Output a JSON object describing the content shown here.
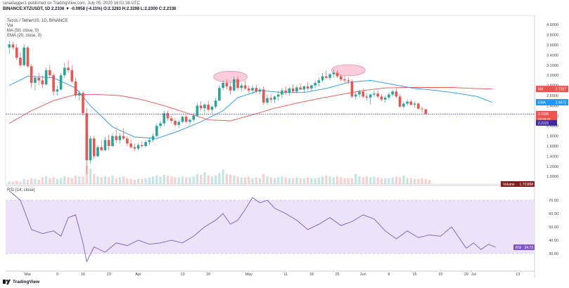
{
  "header": {
    "publisher": "ranadagger1 published on TradingView.com, July 05, 2020 16:01:38 UTC",
    "title": "BINANCE:XTZUSDT, 1D  2.2336 ▼ -0.0958 (-4.11%)  O:2.3283  H:2.3298  L:2.2300  C:2.2336",
    "symbol": "Tezos / TetherUS, 1D, BINANCE",
    "studies": {
      "volume": "Vol",
      "ma": "MA (50, close, 0)",
      "ema": "EMA (20, close, 0)"
    }
  },
  "rsi_panel": {
    "title": "RSI (14, close)"
  },
  "brand": {
    "name": "TradingView"
  },
  "colors": {
    "up": "#26a69a",
    "down": "#ef5350",
    "ema": "#2196f3",
    "ma": "#ef5350",
    "rsi": "#7e57c2",
    "rsi_band": "#ede3f9",
    "price_line": "#3f2a9e",
    "highlight": "#f48fb1"
  },
  "chart_data": [
    {
      "type": "candlestick",
      "title": "Tezos / TetherUS, 1D, BINANCE",
      "y_ticks": [
        1.0,
        1.2,
        1.4,
        1.6,
        1.8,
        2.0,
        2.2,
        2.4,
        2.6,
        2.8,
        3.0,
        3.2,
        3.4,
        3.6,
        3.8,
        4.0
      ],
      "y_tick_labels": [
        "1.0000",
        "1.2000",
        "1.4000",
        "1.6000",
        "1.8000",
        "2.0000",
        "2.2000",
        "2.4000",
        "2.6000",
        "2.8000",
        "3.0000",
        "3.2000",
        "3.4000",
        "3.6000",
        "3.8000",
        "4.0000"
      ],
      "ylim": [
        0.85,
        4.1
      ],
      "x_ticks": [
        {
          "label": "Mar",
          "day": 5
        },
        {
          "label": "9",
          "day": 13
        },
        {
          "label": "16",
          "day": 20
        },
        {
          "label": "23",
          "day": 27
        },
        {
          "label": "Apr",
          "day": 35
        },
        {
          "label": "13",
          "day": 47
        },
        {
          "label": "20",
          "day": 54
        },
        {
          "label": "May",
          "day": 65
        },
        {
          "label": "11",
          "day": 75
        },
        {
          "label": "18",
          "day": 82
        },
        {
          "label": "25",
          "day": 89
        },
        {
          "label": "Jun",
          "day": 96
        },
        {
          "label": "8",
          "day": 103
        },
        {
          "label": "15",
          "day": 110
        },
        {
          "label": "22",
          "day": 117
        },
        {
          "label": "29",
          "day": 124
        },
        {
          "label": "Jul",
          "day": 126
        },
        {
          "label": "13",
          "day": 138
        }
      ],
      "xlim": [
        -1,
        141
      ],
      "candles": [
        [
          3.55,
          3.68,
          3.42,
          3.61
        ],
        [
          3.61,
          3.66,
          3.52,
          3.55
        ],
        [
          3.55,
          3.62,
          3.3,
          3.35
        ],
        [
          3.35,
          3.45,
          3.15,
          3.2
        ],
        [
          3.2,
          3.62,
          3.18,
          3.55
        ],
        [
          3.55,
          3.58,
          3.15,
          3.18
        ],
        [
          3.18,
          3.22,
          2.75,
          2.85
        ],
        [
          2.85,
          3.0,
          2.7,
          2.95
        ],
        [
          2.95,
          3.05,
          2.8,
          2.9
        ],
        [
          2.9,
          3.0,
          2.75,
          2.82
        ],
        [
          2.82,
          3.15,
          2.8,
          3.1
        ],
        [
          3.1,
          3.2,
          2.95,
          3.0
        ],
        [
          3.0,
          3.05,
          2.6,
          2.68
        ],
        [
          2.68,
          2.8,
          2.6,
          2.72
        ],
        [
          2.72,
          3.05,
          2.7,
          3.0
        ],
        [
          3.0,
          3.25,
          2.95,
          3.15
        ],
        [
          3.15,
          3.3,
          3.05,
          3.1
        ],
        [
          3.1,
          3.2,
          2.85,
          2.88
        ],
        [
          2.88,
          2.95,
          2.55,
          2.6
        ],
        [
          2.6,
          2.7,
          2.5,
          2.65
        ],
        [
          2.65,
          2.7,
          2.2,
          2.25
        ],
        [
          2.25,
          2.35,
          1.05,
          1.32
        ],
        [
          1.32,
          1.8,
          1.25,
          1.75
        ],
        [
          1.75,
          1.8,
          1.35,
          1.4
        ],
        [
          1.4,
          1.62,
          1.38,
          1.58
        ],
        [
          1.58,
          1.72,
          1.5,
          1.52
        ],
        [
          1.52,
          1.78,
          1.5,
          1.72
        ],
        [
          1.72,
          1.82,
          1.52,
          1.6
        ],
        [
          1.6,
          1.85,
          1.58,
          1.8
        ],
        [
          1.8,
          1.92,
          1.66,
          1.72
        ],
        [
          1.72,
          1.85,
          1.65,
          1.8
        ],
        [
          1.8,
          1.95,
          1.72,
          1.75
        ],
        [
          1.75,
          1.8,
          1.6,
          1.65
        ],
        [
          1.65,
          1.72,
          1.55,
          1.58
        ],
        [
          1.58,
          1.65,
          1.5,
          1.55
        ],
        [
          1.55,
          1.66,
          1.52,
          1.62
        ],
        [
          1.62,
          1.7,
          1.56,
          1.6
        ],
        [
          1.6,
          1.72,
          1.58,
          1.68
        ],
        [
          1.68,
          1.78,
          1.62,
          1.72
        ],
        [
          1.72,
          1.85,
          1.68,
          1.8
        ],
        [
          1.8,
          2.05,
          1.78,
          2.0
        ],
        [
          2.0,
          2.1,
          1.95,
          2.05
        ],
        [
          2.05,
          2.3,
          2.0,
          2.25
        ],
        [
          2.25,
          2.3,
          2.1,
          2.15
        ],
        [
          2.15,
          2.2,
          2.05,
          2.1
        ],
        [
          2.1,
          2.15,
          1.98,
          2.02
        ],
        [
          2.02,
          2.12,
          1.96,
          2.08
        ],
        [
          2.08,
          2.2,
          2.05,
          2.18
        ],
        [
          2.18,
          2.22,
          2.05,
          2.08
        ],
        [
          2.08,
          2.15,
          2.02,
          2.12
        ],
        [
          2.12,
          2.25,
          2.08,
          2.2
        ],
        [
          2.2,
          2.45,
          2.18,
          2.4
        ],
        [
          2.4,
          2.48,
          2.3,
          2.35
        ],
        [
          2.35,
          2.45,
          2.25,
          2.42
        ],
        [
          2.42,
          2.5,
          2.28,
          2.32
        ],
        [
          2.32,
          2.4,
          2.25,
          2.38
        ],
        [
          2.38,
          2.55,
          2.35,
          2.5
        ],
        [
          2.5,
          2.8,
          2.48,
          2.75
        ],
        [
          2.75,
          2.9,
          2.7,
          2.85
        ],
        [
          2.85,
          2.92,
          2.72,
          2.78
        ],
        [
          2.78,
          2.85,
          2.62,
          2.7
        ],
        [
          2.7,
          2.98,
          2.68,
          2.92
        ],
        [
          2.92,
          2.98,
          2.7,
          2.75
        ],
        [
          2.75,
          2.85,
          2.68,
          2.8
        ],
        [
          2.8,
          2.9,
          2.7,
          2.74
        ],
        [
          2.74,
          2.8,
          2.65,
          2.7
        ],
        [
          2.7,
          2.8,
          2.62,
          2.75
        ],
        [
          2.75,
          2.82,
          2.65,
          2.68
        ],
        [
          2.68,
          2.75,
          2.62,
          2.72
        ],
        [
          2.72,
          2.78,
          2.42,
          2.46
        ],
        [
          2.46,
          2.62,
          2.42,
          2.55
        ],
        [
          2.55,
          2.62,
          2.45,
          2.52
        ],
        [
          2.52,
          2.6,
          2.44,
          2.58
        ],
        [
          2.58,
          2.7,
          2.5,
          2.62
        ],
        [
          2.62,
          2.75,
          2.55,
          2.7
        ],
        [
          2.7,
          2.78,
          2.62,
          2.66
        ],
        [
          2.66,
          2.76,
          2.6,
          2.74
        ],
        [
          2.74,
          2.82,
          2.65,
          2.68
        ],
        [
          2.68,
          2.8,
          2.64,
          2.76
        ],
        [
          2.76,
          2.84,
          2.7,
          2.72
        ],
        [
          2.72,
          2.8,
          2.66,
          2.78
        ],
        [
          2.78,
          2.86,
          2.7,
          2.74
        ],
        [
          2.74,
          2.82,
          2.68,
          2.8
        ],
        [
          2.8,
          2.9,
          2.74,
          2.85
        ],
        [
          2.85,
          2.95,
          2.78,
          2.9
        ],
        [
          2.9,
          3.05,
          2.86,
          2.98
        ],
        [
          2.98,
          3.1,
          2.92,
          2.95
        ],
        [
          2.95,
          3.05,
          2.9,
          3.02
        ],
        [
          3.02,
          3.12,
          2.95,
          3.05
        ],
        [
          3.05,
          3.1,
          2.95,
          2.98
        ],
        [
          2.98,
          3.02,
          2.88,
          2.92
        ],
        [
          2.92,
          2.98,
          2.85,
          2.9
        ],
        [
          2.9,
          2.96,
          2.82,
          2.88
        ],
        [
          2.88,
          2.92,
          2.55,
          2.58
        ],
        [
          2.58,
          2.66,
          2.52,
          2.62
        ],
        [
          2.62,
          2.72,
          2.56,
          2.68
        ],
        [
          2.68,
          2.74,
          2.55,
          2.58
        ],
        [
          2.58,
          2.64,
          2.5,
          2.56
        ],
        [
          2.56,
          2.64,
          2.42,
          2.62
        ],
        [
          2.62,
          2.7,
          2.58,
          2.64
        ],
        [
          2.64,
          2.7,
          2.55,
          2.58
        ],
        [
          2.58,
          2.62,
          2.48,
          2.52
        ],
        [
          2.52,
          2.6,
          2.46,
          2.56
        ],
        [
          2.56,
          2.66,
          2.52,
          2.62
        ],
        [
          2.62,
          2.72,
          2.58,
          2.68
        ],
        [
          2.68,
          2.74,
          2.55,
          2.58
        ],
        [
          2.58,
          2.62,
          2.36,
          2.38
        ],
        [
          2.38,
          2.48,
          2.34,
          2.44
        ],
        [
          2.44,
          2.52,
          2.4,
          2.48
        ],
        [
          2.48,
          2.52,
          2.4,
          2.42
        ],
        [
          2.42,
          2.48,
          2.36,
          2.44
        ],
        [
          2.44,
          2.46,
          2.32,
          2.34
        ],
        [
          2.34,
          2.38,
          2.26,
          2.33
        ],
        [
          2.33,
          2.33,
          2.23,
          2.2336
        ]
      ],
      "ema20": [
        [
          0,
          2.8
        ],
        [
          5,
          2.98
        ],
        [
          12,
          2.95
        ],
        [
          18,
          2.75
        ],
        [
          22,
          2.4
        ],
        [
          28,
          1.98
        ],
        [
          34,
          1.78
        ],
        [
          40,
          1.75
        ],
        [
          46,
          1.9
        ],
        [
          52,
          2.08
        ],
        [
          58,
          2.3
        ],
        [
          62,
          2.56
        ],
        [
          68,
          2.7
        ],
        [
          74,
          2.66
        ],
        [
          80,
          2.66
        ],
        [
          86,
          2.74
        ],
        [
          92,
          2.86
        ],
        [
          98,
          2.9
        ],
        [
          104,
          2.82
        ],
        [
          110,
          2.74
        ],
        [
          116,
          2.7
        ],
        [
          122,
          2.64
        ],
        [
          127,
          2.58
        ],
        [
          131,
          2.4672
        ]
      ],
      "ma50": [
        [
          0,
          2.05
        ],
        [
          6,
          2.3
        ],
        [
          12,
          2.5
        ],
        [
          18,
          2.62
        ],
        [
          24,
          2.62
        ],
        [
          30,
          2.6
        ],
        [
          36,
          2.52
        ],
        [
          42,
          2.4
        ],
        [
          48,
          2.26
        ],
        [
          54,
          2.12
        ],
        [
          60,
          2.1
        ],
        [
          66,
          2.22
        ],
        [
          72,
          2.35
        ],
        [
          78,
          2.45
        ],
        [
          84,
          2.54
        ],
        [
          90,
          2.62
        ],
        [
          96,
          2.7
        ],
        [
          102,
          2.75
        ],
        [
          108,
          2.76
        ],
        [
          114,
          2.76
        ],
        [
          120,
          2.76
        ],
        [
          126,
          2.74
        ],
        [
          131,
          2.7297
        ]
      ],
      "volume": [
        3,
        3,
        4,
        3,
        6,
        5,
        7,
        6,
        5,
        8,
        9,
        7,
        8,
        6,
        7,
        9,
        8,
        7,
        10,
        9,
        9,
        22,
        18,
        12,
        9,
        8,
        9,
        8,
        10,
        7,
        8,
        9,
        7,
        6,
        5,
        6,
        6,
        7,
        8,
        9,
        10,
        9,
        11,
        10,
        9,
        8,
        8,
        9,
        8,
        8,
        9,
        12,
        11,
        14,
        10,
        9,
        10,
        13,
        17,
        12,
        11,
        10,
        9,
        8,
        8,
        9,
        7,
        8,
        7,
        12,
        9,
        8,
        7,
        8,
        9,
        8,
        7,
        7,
        8,
        7,
        7,
        8,
        7,
        7,
        8,
        9,
        10,
        9,
        8,
        9,
        8,
        7,
        7,
        7,
        12,
        9,
        8,
        9,
        8,
        9,
        8,
        7,
        7,
        7,
        8,
        9,
        8,
        10,
        7,
        7,
        6,
        6,
        7,
        6,
        5
      ],
      "highlights": [
        {
          "day": 60,
          "price": 2.97
        },
        {
          "day": 92,
          "price": 3.1
        }
      ],
      "current_price": 2.2336
    },
    {
      "type": "line",
      "title": "RSI (14, close)",
      "y_ticks": [
        30,
        40,
        50,
        60,
        70
      ],
      "y_tick_labels": [
        "30.00",
        "40.00",
        "50.00",
        "60.00",
        "70.00"
      ],
      "ylim": [
        20,
        80
      ],
      "band": [
        30,
        70
      ],
      "rsi": [
        [
          0,
          77
        ],
        [
          3,
          70
        ],
        [
          6,
          48
        ],
        [
          9,
          45
        ],
        [
          12,
          47
        ],
        [
          14,
          43
        ],
        [
          16,
          57
        ],
        [
          18,
          59
        ],
        [
          20,
          38
        ],
        [
          21,
          24
        ],
        [
          23,
          35
        ],
        [
          26,
          31
        ],
        [
          29,
          38
        ],
        [
          32,
          36
        ],
        [
          35,
          40
        ],
        [
          38,
          37
        ],
        [
          41,
          38
        ],
        [
          44,
          40
        ],
        [
          47,
          38
        ],
        [
          50,
          43
        ],
        [
          53,
          50
        ],
        [
          56,
          55
        ],
        [
          58,
          60
        ],
        [
          60,
          52
        ],
        [
          62,
          55
        ],
        [
          64,
          63
        ],
        [
          66,
          72
        ],
        [
          68,
          68
        ],
        [
          70,
          70
        ],
        [
          72,
          64
        ],
        [
          75,
          60
        ],
        [
          78,
          55
        ],
        [
          81,
          48
        ],
        [
          84,
          52
        ],
        [
          87,
          57
        ],
        [
          90,
          51
        ],
        [
          93,
          54
        ],
        [
          96,
          59
        ],
        [
          99,
          56
        ],
        [
          102,
          47
        ],
        [
          105,
          41
        ],
        [
          108,
          47
        ],
        [
          111,
          42
        ],
        [
          114,
          44
        ],
        [
          117,
          43
        ],
        [
          120,
          50
        ],
        [
          122,
          42
        ],
        [
          124,
          34
        ],
        [
          126,
          38
        ],
        [
          128,
          33
        ],
        [
          130,
          37
        ],
        [
          132,
          34.72
        ]
      ],
      "current_value": 34.72
    }
  ],
  "labels": {
    "ma": "MA",
    "ma_value": "2.7297",
    "ema": "EMA",
    "ema_value": "2.4672",
    "price": "2.2336",
    "price_sub": "22:00:22",
    "level": "2.2121",
    "volume": "Volume",
    "volume_value": "1.7038M",
    "rsi": "RSI",
    "rsi_value": "34.72"
  }
}
